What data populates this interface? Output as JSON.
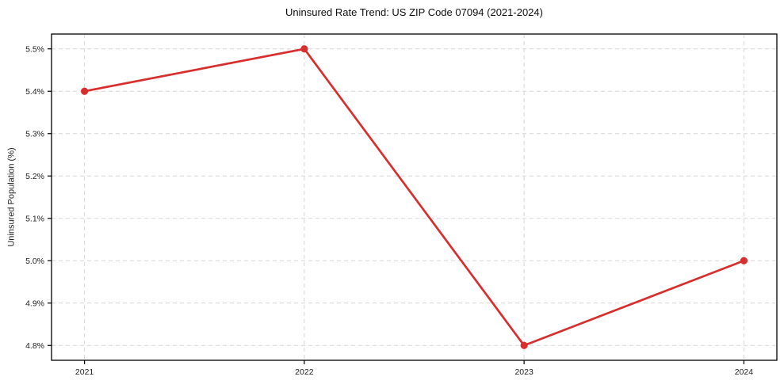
{
  "chart_data": {
    "type": "line",
    "title": "Uninsured Rate Trend: US ZIP Code 07094 (2021-2024)",
    "xlabel": "",
    "ylabel": "Uninsured Population (%)",
    "x": [
      2021,
      2022,
      2023,
      2024
    ],
    "x_tick_labels": [
      "2021",
      "2022",
      "2023",
      "2024"
    ],
    "values": [
      5.4,
      5.5,
      4.8,
      5.0
    ],
    "y_ticks": [
      4.8,
      4.9,
      5.0,
      5.1,
      5.2,
      5.3,
      5.4,
      5.5
    ],
    "y_tick_labels": [
      "4.8%",
      "4.9%",
      "5.0%",
      "5.1%",
      "5.2%",
      "5.3%",
      "5.4%",
      "5.5%"
    ],
    "xlim": [
      2020.85,
      2024.15
    ],
    "ylim": [
      4.765,
      5.535
    ],
    "grid": true,
    "legend": false,
    "line_color": "#d62f2e",
    "marker": "circle",
    "marker_color": "#d62f2e",
    "grid_color": "#d6d6d6",
    "axis_color": "#000000",
    "background_color": "#ffffff"
  }
}
